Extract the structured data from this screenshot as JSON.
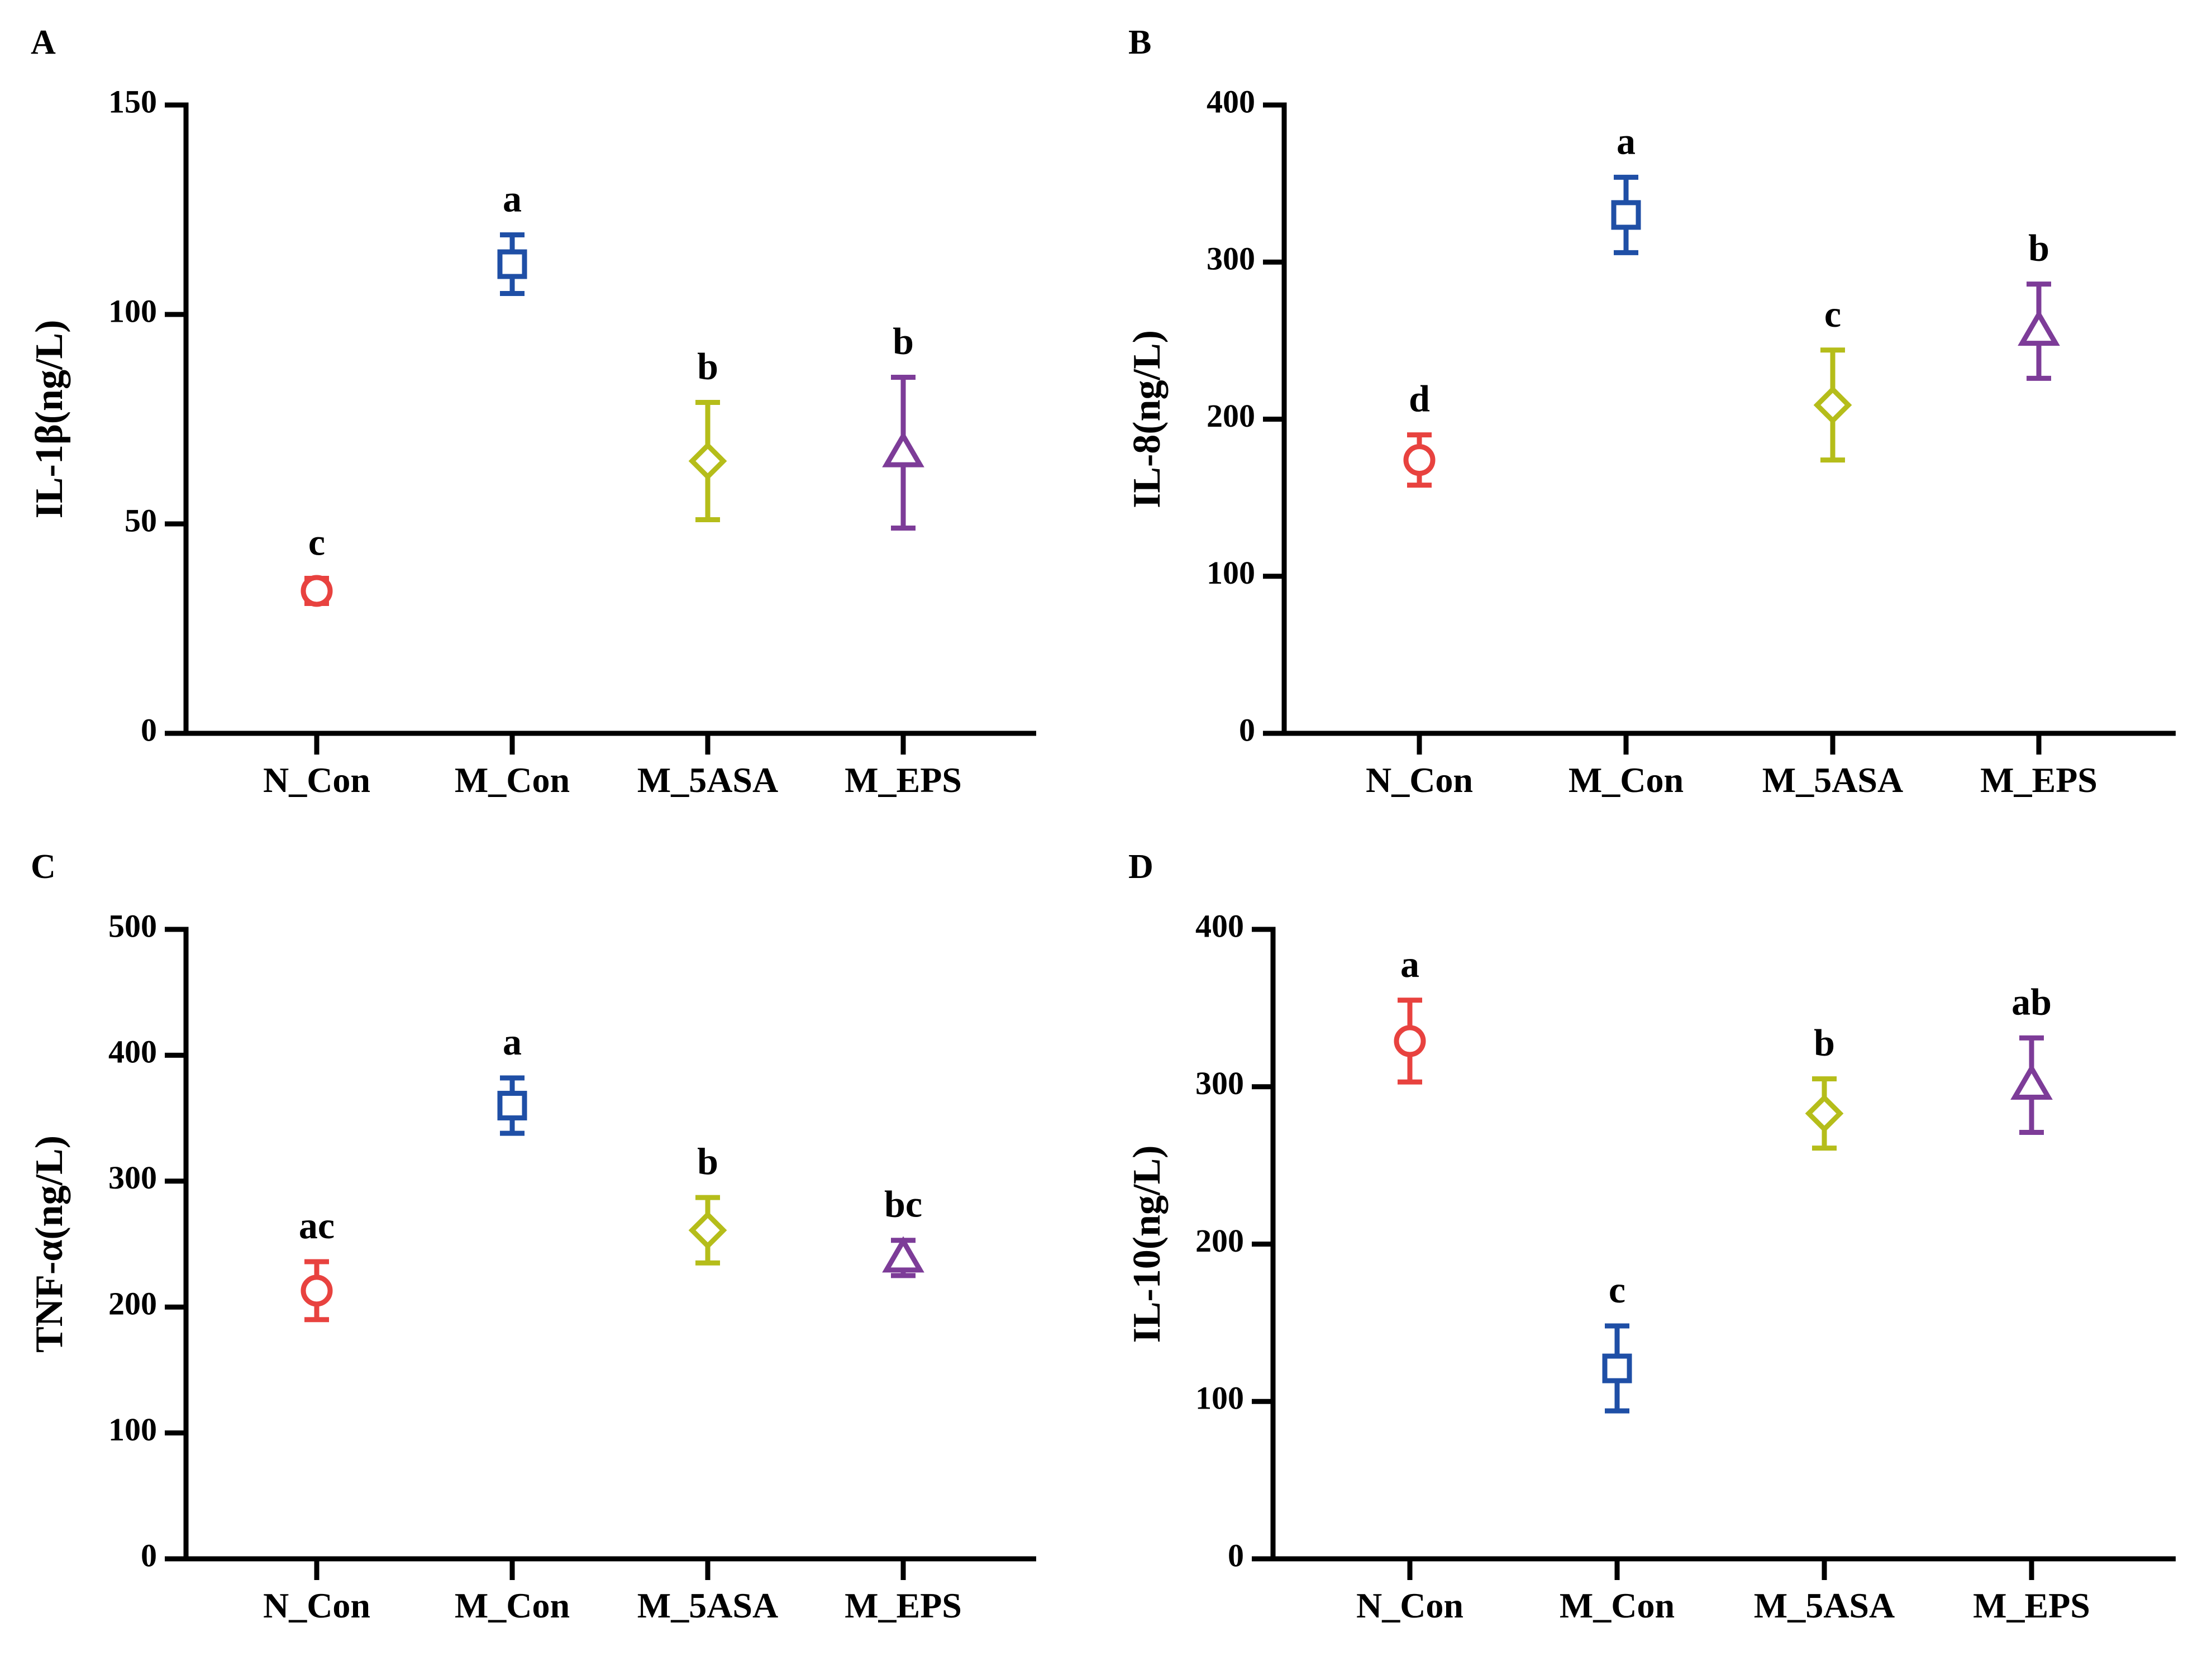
{
  "chart_data": [
    {
      "panel": "A",
      "type": "scatter",
      "title": "",
      "xlabel": "",
      "ylabel": "IL-1β(ng/L)",
      "ylim": [
        0,
        150
      ],
      "yticks": [
        0,
        50,
        100,
        150
      ],
      "grid": false,
      "categories": [
        "N_Con",
        "M_Con",
        "M_5ASA",
        "M_EPS"
      ],
      "values": [
        34,
        112,
        65,
        67
      ],
      "errors": [
        3,
        7,
        14,
        18
      ],
      "letters": [
        "c",
        "a",
        "b",
        "b"
      ]
    },
    {
      "panel": "B",
      "type": "scatter",
      "title": "",
      "xlabel": "",
      "ylabel": "IL-8(ng/L)",
      "ylim": [
        0,
        400
      ],
      "yticks": [
        0,
        100,
        200,
        300,
        400
      ],
      "grid": false,
      "categories": [
        "N_Con",
        "M_Con",
        "M_5ASA",
        "M_EPS"
      ],
      "values": [
        174,
        330,
        209,
        256
      ],
      "errors": [
        16,
        24,
        35,
        30
      ],
      "letters": [
        "d",
        "a",
        "c",
        "b"
      ]
    },
    {
      "panel": "C",
      "type": "scatter",
      "title": "",
      "xlabel": "",
      "ylabel": "TNF-α(ng/L)",
      "ylim": [
        0,
        500
      ],
      "yticks": [
        0,
        100,
        200,
        300,
        400,
        500
      ],
      "grid": false,
      "categories": [
        "N_Con",
        "M_Con",
        "M_5ASA",
        "M_EPS"
      ],
      "values": [
        213,
        360,
        261,
        239
      ],
      "errors": [
        23,
        22,
        26,
        14
      ],
      "letters": [
        "ac",
        "a",
        "b",
        "bc"
      ]
    },
    {
      "panel": "D",
      "type": "scatter",
      "title": "",
      "xlabel": "",
      "ylabel": "IL-10(ng/L)",
      "ylim": [
        0,
        400
      ],
      "yticks": [
        0,
        100,
        200,
        300,
        400
      ],
      "grid": false,
      "categories": [
        "N_Con",
        "M_Con",
        "M_5ASA",
        "M_EPS"
      ],
      "values": [
        329,
        121,
        283,
        301
      ],
      "errors": [
        26,
        27,
        22,
        30
      ],
      "letters": [
        "a",
        "c",
        "b",
        "ab"
      ]
    }
  ],
  "colors": [
    "#e8423f",
    "#1f4fa6",
    "#b5bd1a",
    "#7d3c98"
  ],
  "markers": [
    "circle-icon",
    "square-icon",
    "diamond-icon",
    "triangle-icon"
  ]
}
